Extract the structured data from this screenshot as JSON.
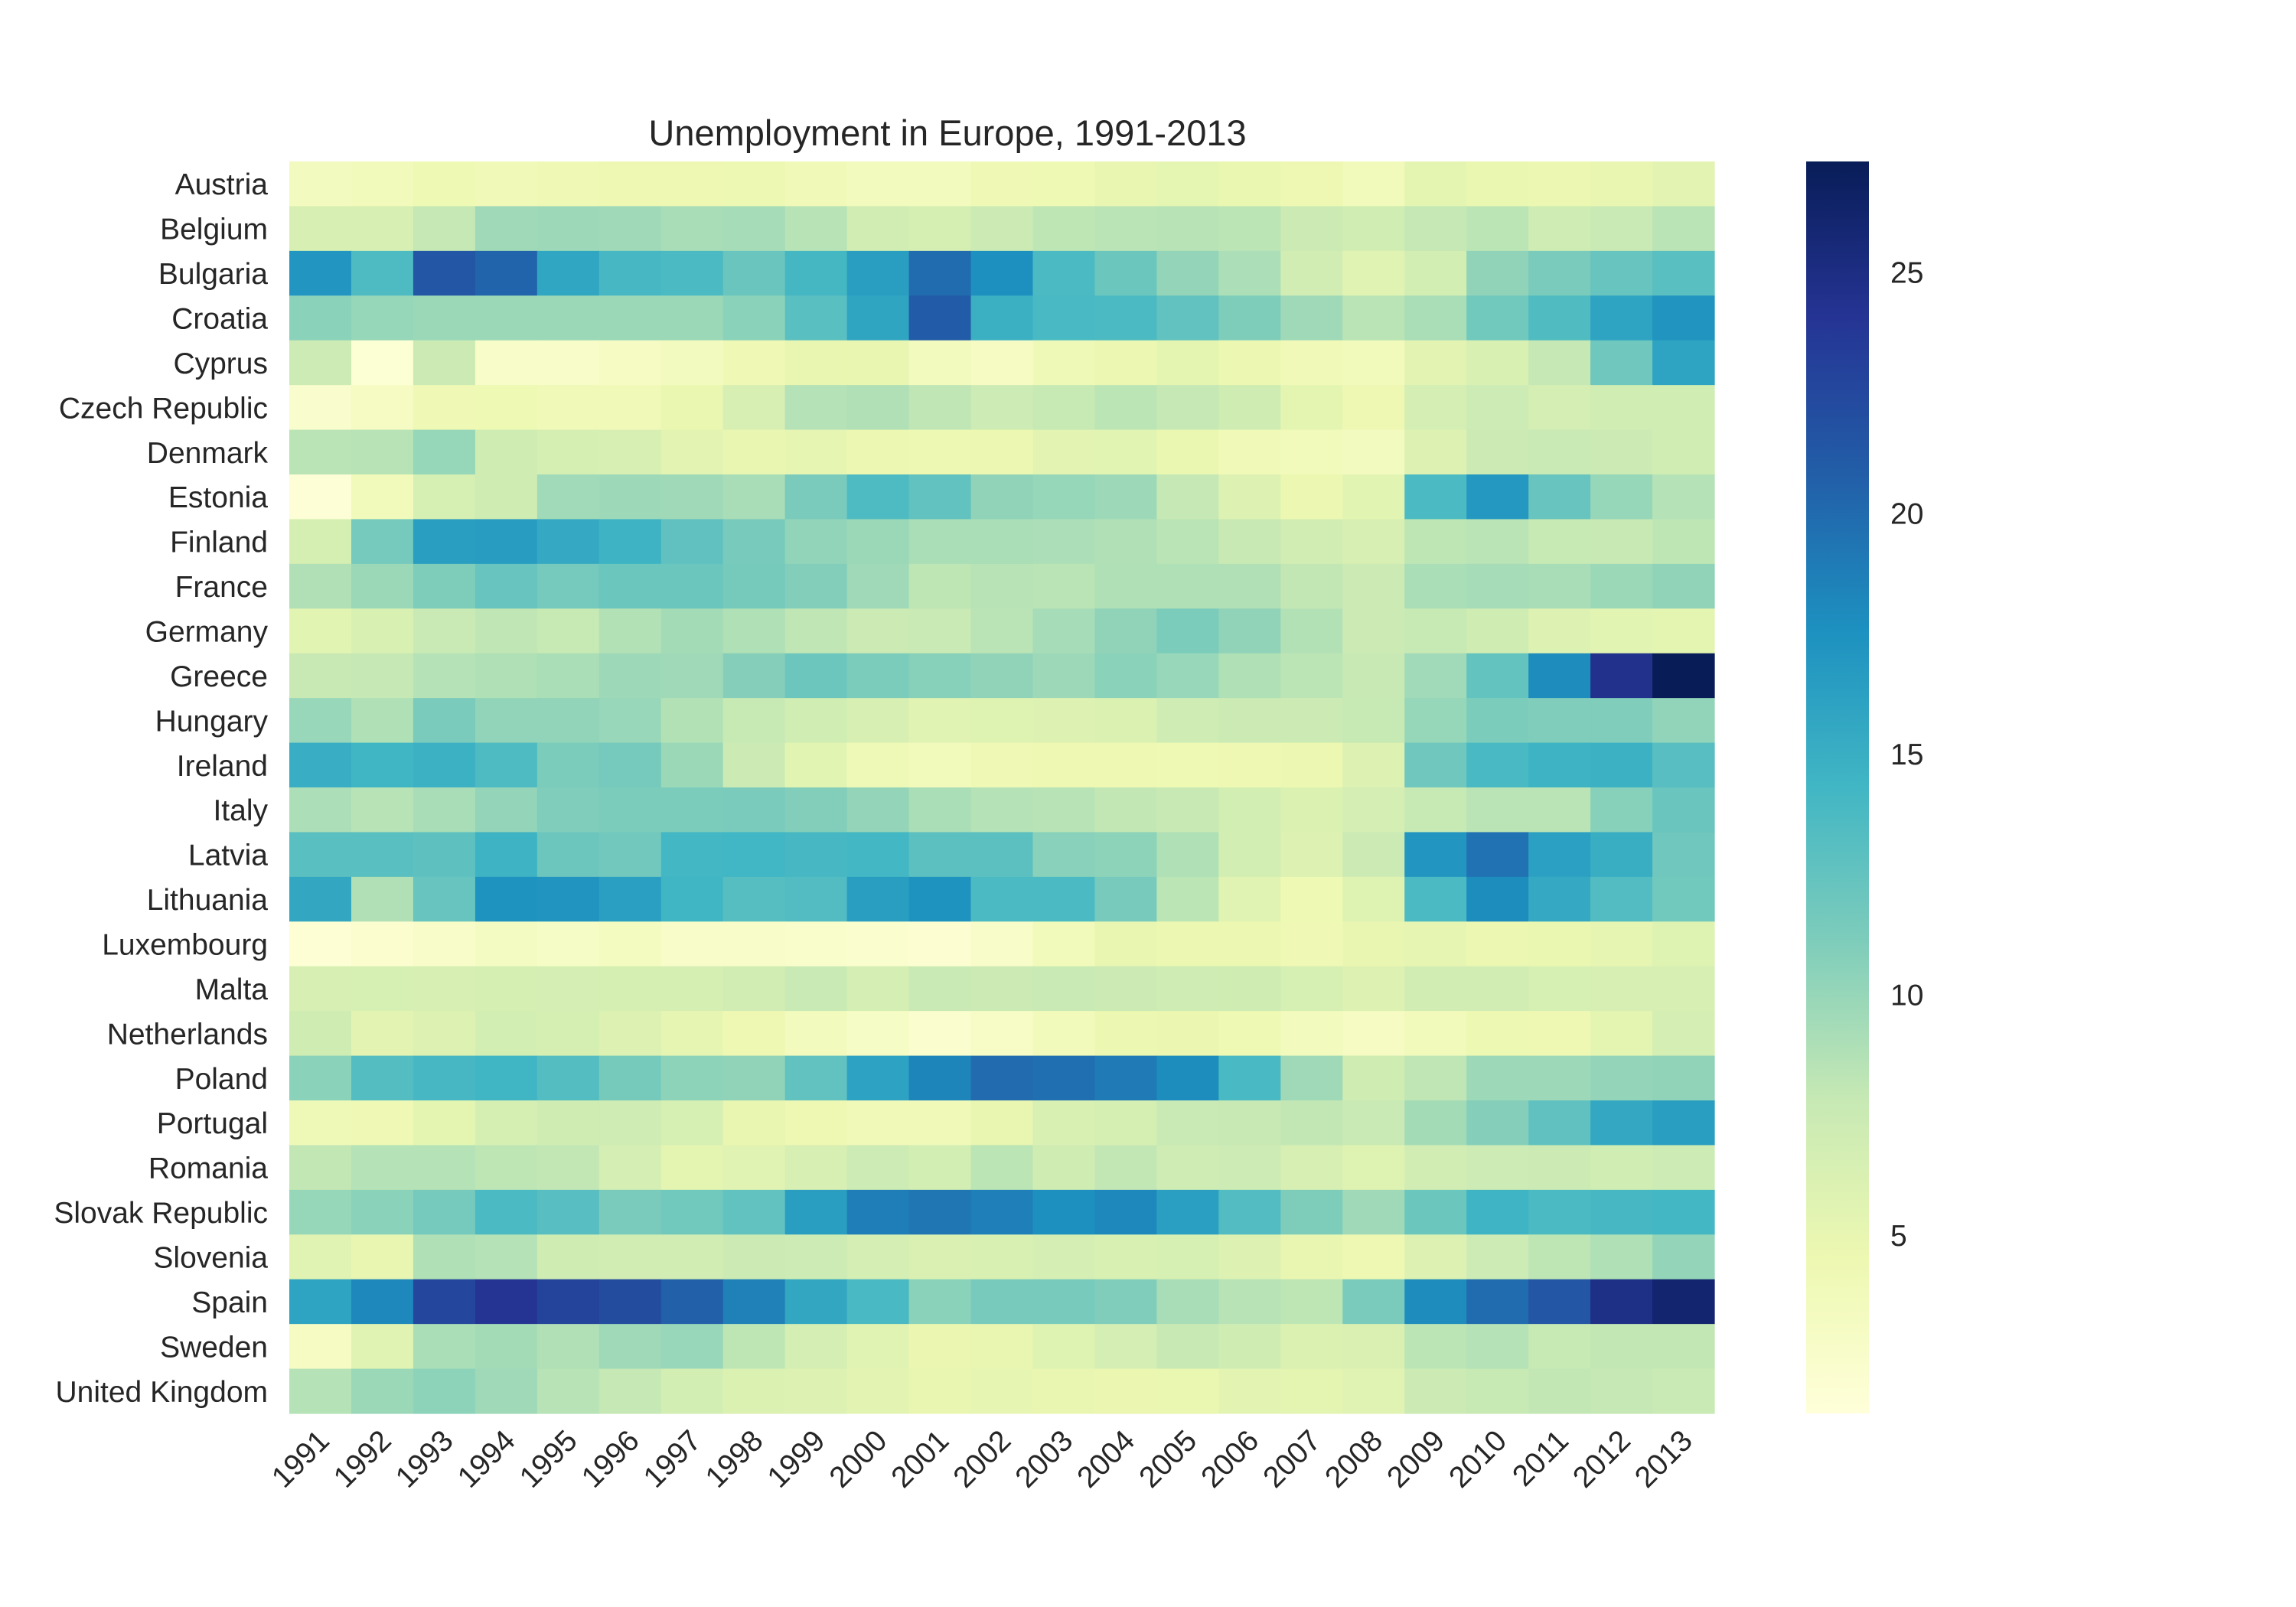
{
  "chart_data": {
    "type": "heatmap",
    "title": "Unemployment in Europe, 1991-2013",
    "xlabel": "",
    "ylabel": "",
    "x": [
      "1991",
      "1992",
      "1993",
      "1994",
      "1995",
      "1996",
      "1997",
      "1998",
      "1999",
      "2000",
      "2001",
      "2002",
      "2003",
      "2004",
      "2005",
      "2006",
      "2007",
      "2008",
      "2009",
      "2010",
      "2011",
      "2012",
      "2013"
    ],
    "y": [
      "Austria",
      "Belgium",
      "Bulgaria",
      "Croatia",
      "Cyprus",
      "Czech Republic",
      "Denmark",
      "Estonia",
      "Finland",
      "France",
      "Germany",
      "Greece",
      "Hungary",
      "Ireland",
      "Italy",
      "Latvia",
      "Lithuania",
      "Luxembourg",
      "Malta",
      "Netherlands",
      "Poland",
      "Portugal",
      "Romania",
      "Slovak Republic",
      "Slovenia",
      "Spain",
      "Sweden",
      "United Kingdom"
    ],
    "values": [
      [
        3.4,
        3.7,
        4.3,
        3.9,
        4.2,
        4.4,
        4.4,
        4.5,
        3.9,
        3.6,
        3.6,
        4.2,
        4.3,
        4.9,
        5.2,
        4.8,
        4.4,
        3.8,
        5.3,
        4.8,
        4.6,
        4.9,
        5.4
      ],
      [
        6.4,
        6.4,
        7.9,
        9.6,
        9.7,
        9.6,
        9.2,
        9.3,
        8.5,
        6.9,
        6.6,
        7.5,
        8.2,
        8.4,
        8.5,
        8.3,
        7.5,
        7.0,
        7.9,
        8.3,
        7.2,
        7.6,
        8.4
      ],
      [
        17.1,
        13.6,
        21.4,
        20.4,
        15.7,
        14.0,
        13.8,
        12.2,
        14.1,
        16.4,
        19.9,
        17.6,
        13.7,
        12.1,
        10.1,
        9.0,
        6.9,
        5.6,
        6.8,
        10.3,
        11.3,
        12.3,
        13.0
      ],
      [
        10.5,
        10.0,
        9.8,
        9.8,
        9.8,
        9.8,
        9.8,
        10.5,
        13.0,
        15.8,
        21.0,
        14.8,
        13.9,
        13.7,
        12.6,
        11.1,
        9.6,
        8.4,
        9.1,
        11.8,
        13.5,
        15.9,
        17.2
      ],
      [
        7.3,
        1.8,
        7.4,
        2.7,
        2.6,
        3.1,
        3.4,
        4.2,
        5.0,
        4.9,
        3.6,
        3.0,
        4.1,
        4.6,
        5.3,
        4.6,
        3.9,
        3.7,
        5.4,
        6.3,
        7.9,
        11.9,
        15.9
      ],
      [
        2.3,
        3.1,
        4.2,
        4.3,
        4.0,
        3.9,
        4.8,
        6.4,
        8.6,
        8.8,
        8.1,
        7.3,
        7.8,
        8.3,
        7.9,
        7.1,
        5.3,
        4.4,
        6.7,
        7.3,
        6.7,
        7.0,
        7.0
      ],
      [
        8.4,
        8.5,
        10.0,
        7.1,
        6.6,
        6.4,
        5.4,
        5.0,
        5.1,
        4.6,
        4.5,
        4.6,
        5.4,
        5.5,
        4.8,
        3.9,
        3.8,
        3.4,
        6.0,
        7.5,
        7.6,
        7.5,
        7.0
      ],
      [
        1.6,
        3.7,
        6.5,
        7.1,
        9.5,
        9.7,
        9.6,
        9.2,
        11.3,
        13.6,
        12.6,
        10.3,
        10.0,
        9.7,
        7.9,
        5.9,
        4.6,
        5.5,
        13.8,
        16.9,
        12.3,
        10.0,
        8.6
      ],
      [
        6.6,
        11.6,
        16.4,
        16.6,
        15.4,
        14.6,
        12.7,
        11.4,
        10.2,
        9.8,
        9.1,
        9.1,
        9.0,
        8.8,
        8.4,
        7.7,
        6.9,
        6.4,
        8.2,
        8.4,
        7.8,
        7.7,
        8.2
      ],
      [
        8.8,
        9.8,
        11.1,
        12.3,
        11.6,
        12.1,
        12.1,
        11.5,
        10.9,
        9.6,
        8.2,
        8.5,
        8.4,
        8.9,
        8.9,
        8.8,
        8.0,
        7.4,
        9.1,
        9.3,
        9.2,
        9.8,
        10.3
      ],
      [
        5.5,
        6.3,
        7.6,
        8.1,
        7.8,
        8.7,
        9.4,
        8.9,
        8.1,
        7.5,
        7.6,
        8.4,
        9.3,
        10.3,
        11.2,
        10.3,
        8.7,
        7.5,
        7.8,
        7.1,
        5.9,
        5.5,
        5.3
      ],
      [
        7.7,
        7.9,
        8.6,
        8.9,
        9.1,
        9.7,
        9.6,
        10.8,
        12.0,
        11.2,
        10.7,
        10.3,
        9.7,
        10.5,
        9.9,
        8.9,
        8.3,
        7.7,
        9.5,
        12.5,
        17.9,
        24.5,
        27.3
      ],
      [
        9.9,
        8.9,
        11.3,
        10.2,
        10.2,
        9.9,
        8.7,
        7.8,
        7.0,
        6.4,
        5.7,
        5.8,
        5.9,
        6.1,
        7.2,
        7.5,
        7.4,
        7.8,
        10.0,
        11.2,
        11.0,
        11.0,
        10.2
      ],
      [
        15.1,
        14.4,
        14.7,
        13.6,
        11.2,
        11.6,
        9.8,
        7.4,
        5.5,
        4.1,
        3.7,
        4.2,
        4.4,
        4.4,
        4.3,
        4.4,
        4.6,
        6.0,
        11.9,
        13.9,
        14.6,
        14.7,
        13.1
      ],
      [
        9.0,
        8.5,
        9.2,
        10.1,
        11.0,
        11.2,
        11.2,
        11.3,
        10.9,
        10.1,
        9.1,
        8.6,
        8.5,
        8.0,
        7.7,
        6.8,
        6.1,
        6.7,
        7.8,
        8.4,
        8.4,
        10.7,
        12.2
      ],
      [
        13.0,
        13.0,
        12.8,
        14.6,
        12.0,
        11.7,
        14.2,
        14.3,
        14.0,
        14.2,
        12.9,
        12.9,
        10.6,
        10.4,
        8.9,
        6.8,
        6.0,
        7.5,
        17.1,
        19.5,
        16.2,
        15.0,
        11.9
      ],
      [
        15.6,
        8.8,
        12.3,
        17.4,
        17.2,
        16.3,
        14.4,
        13.2,
        13.4,
        16.4,
        17.4,
        13.8,
        13.8,
        11.4,
        8.3,
        5.6,
        4.3,
        5.8,
        13.8,
        17.8,
        15.4,
        13.4,
        11.8
      ],
      [
        1.7,
        2.1,
        2.6,
        3.2,
        2.9,
        3.3,
        2.7,
        2.7,
        2.4,
        2.2,
        1.9,
        2.6,
        3.8,
        5.0,
        4.6,
        4.6,
        4.2,
        4.9,
        5.1,
        4.6,
        4.8,
        5.1,
        5.8
      ],
      [
        6.4,
        6.5,
        6.4,
        6.6,
        6.7,
        6.6,
        6.6,
        6.9,
        7.6,
        6.7,
        7.6,
        7.5,
        7.6,
        7.4,
        7.2,
        7.1,
        6.5,
        6.0,
        6.9,
        6.9,
        6.5,
        6.4,
        6.4
      ],
      [
        7.1,
        5.4,
        6.0,
        6.8,
        6.6,
        6.0,
        5.1,
        4.4,
        3.6,
        2.9,
        2.2,
        2.8,
        3.7,
        4.6,
        4.7,
        4.3,
        3.6,
        3.1,
        3.7,
        4.5,
        4.4,
        5.3,
        6.7
      ],
      [
        10.5,
        13.3,
        14.0,
        14.4,
        13.3,
        11.5,
        10.4,
        10.3,
        12.6,
        16.1,
        18.3,
        20.0,
        19.7,
        19.0,
        17.8,
        13.9,
        9.6,
        7.1,
        8.1,
        9.7,
        9.7,
        10.1,
        10.3
      ],
      [
        4.1,
        4.2,
        5.3,
        6.6,
        7.1,
        7.2,
        6.5,
        5.0,
        4.4,
        3.9,
        4.0,
        5.0,
        6.3,
        6.6,
        7.6,
        7.7,
        8.0,
        7.6,
        9.4,
        10.8,
        12.7,
        15.5,
        16.4
      ],
      [
        8.0,
        8.6,
        8.6,
        8.2,
        8.0,
        6.7,
        5.3,
        5.6,
        6.4,
        7.3,
        6.8,
        8.3,
        7.1,
        8.0,
        7.2,
        7.3,
        6.4,
        5.8,
        6.9,
        7.3,
        7.4,
        7.0,
        7.3
      ],
      [
        10.0,
        10.5,
        11.6,
        13.7,
        13.1,
        11.3,
        11.8,
        12.6,
        16.4,
        18.8,
        19.3,
        18.7,
        17.6,
        18.2,
        16.3,
        13.4,
        11.1,
        9.6,
        12.1,
        14.5,
        13.7,
        14.0,
        14.2
      ],
      [
        5.6,
        5.0,
        8.9,
        8.6,
        7.1,
        6.9,
        6.9,
        7.4,
        7.3,
        6.7,
        6.2,
        6.3,
        6.7,
        6.3,
        6.5,
        6.0,
        4.9,
        4.4,
        5.9,
        7.3,
        8.2,
        8.9,
        10.1
      ],
      [
        16.0,
        18.1,
        22.6,
        24.1,
        22.9,
        22.2,
        20.6,
        18.6,
        15.6,
        13.9,
        10.5,
        11.4,
        11.4,
        11.0,
        9.2,
        8.5,
        8.2,
        11.3,
        17.9,
        19.9,
        21.4,
        24.8,
        26.1
      ],
      [
        3.1,
        5.6,
        9.1,
        9.4,
        8.8,
        9.6,
        9.9,
        8.2,
        6.7,
        5.6,
        4.7,
        5.0,
        5.8,
        6.7,
        7.7,
        7.1,
        6.1,
        6.2,
        8.3,
        8.6,
        7.8,
        8.0,
        8.0
      ],
      [
        8.6,
        9.8,
        10.4,
        9.6,
        8.5,
        7.9,
        6.8,
        6.1,
        5.9,
        5.4,
        5.0,
        5.1,
        4.9,
        4.7,
        4.8,
        5.4,
        5.3,
        5.6,
        7.5,
        7.8,
        8.0,
        7.9,
        7.6
      ]
    ],
    "vmin": 1.3,
    "vmax": 27.3,
    "colorbar_ticks": [
      5,
      10,
      15,
      20,
      25
    ],
    "colormap": "YlGnBu",
    "colormap_stops": [
      "#ffffd9",
      "#edf8b1",
      "#c7e9b4",
      "#7fcdbb",
      "#41b6c4",
      "#1d91c0",
      "#225ea8",
      "#253494",
      "#081d58"
    ],
    "grid": false,
    "legend": "colorbar-right"
  }
}
